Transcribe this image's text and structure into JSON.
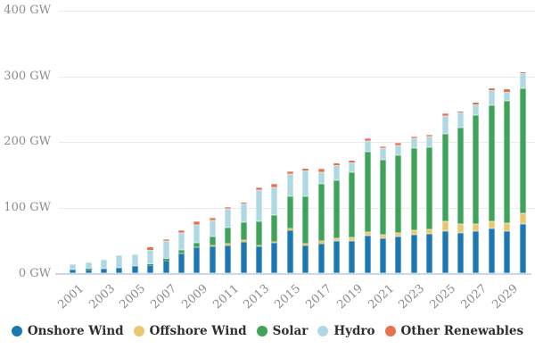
{
  "chart_data": {
    "type": "bar",
    "stacked": true,
    "title": "",
    "unit": "GW",
    "grid": "horizontal",
    "legend_position": "bottom",
    "ylim": [
      0,
      430
    ],
    "y_ticks": [
      {
        "value": 0,
        "label": "0 GW"
      },
      {
        "value": 100,
        "label": "100 GW"
      },
      {
        "value": 200,
        "label": "200 GW"
      },
      {
        "value": 300,
        "label": "300 GW"
      },
      {
        "value": 400,
        "label": "400 GW"
      }
    ],
    "categories": [
      2001,
      2002,
      2003,
      2004,
      2005,
      2006,
      2007,
      2008,
      2009,
      2010,
      2011,
      2012,
      2013,
      2014,
      2015,
      2016,
      2017,
      2018,
      2019,
      2020,
      2021,
      2022,
      2023,
      2024,
      2025,
      2026,
      2027,
      2028,
      2029,
      2030
    ],
    "x_tick_labels": [
      "2001",
      "2003",
      "2005",
      "2007",
      "2009",
      "2011",
      "2013",
      "2015",
      "2017",
      "2019",
      "2021",
      "2023",
      "2025",
      "2027",
      "2029"
    ],
    "series": [
      {
        "name": "Onshore Wind",
        "color": "#1b78b2",
        "values": [
          6,
          6.5,
          7,
          8.5,
          11,
          13,
          20,
          30,
          40,
          42,
          43,
          48,
          41,
          47,
          66,
          43,
          46,
          49,
          50,
          58,
          54,
          57,
          59,
          60,
          65,
          62,
          65,
          68,
          65,
          76
        ]
      },
      {
        "name": "Offshore Wind",
        "color": "#e9c76f",
        "values": [
          0,
          0,
          0,
          0,
          0,
          0,
          0,
          0.5,
          0.7,
          1,
          2,
          2.7,
          1.5,
          1.5,
          3,
          2.7,
          3,
          4.5,
          4.5,
          5.4,
          5.4,
          5.4,
          6.8,
          7.2,
          15,
          13,
          11,
          12,
          12,
          16
        ]
      },
      {
        "name": "Solar",
        "color": "#3fa45a",
        "values": [
          0.3,
          0.4,
          0.5,
          0.7,
          1,
          1.5,
          2,
          5,
          6,
          13,
          25,
          28,
          37,
          41,
          48,
          72,
          88,
          89,
          100,
          122,
          114,
          118,
          125,
          125,
          132,
          147,
          165,
          176,
          186,
          190
        ]
      },
      {
        "name": "Hydro",
        "color": "#aed9e2",
        "values": [
          8,
          9.5,
          13,
          19,
          17,
          22,
          27,
          26,
          28,
          25,
          28,
          28,
          47,
          42,
          35,
          39,
          17,
          22,
          15,
          17,
          17,
          15,
          14.5,
          16,
          28,
          23,
          17,
          23,
          14,
          23
        ]
      },
      {
        "name": "Other Renewables",
        "color": "#e8714b",
        "values": [
          0,
          0,
          0,
          0,
          0,
          3,
          3.5,
          4.5,
          4.5,
          4.5,
          3.5,
          1,
          4.5,
          4.5,
          3.5,
          2.7,
          6.3,
          3.2,
          2.7,
          3.6,
          3.6,
          3.6,
          3.6,
          3.6,
          3.6,
          1,
          2,
          2.7,
          3,
          2
        ]
      }
    ]
  }
}
